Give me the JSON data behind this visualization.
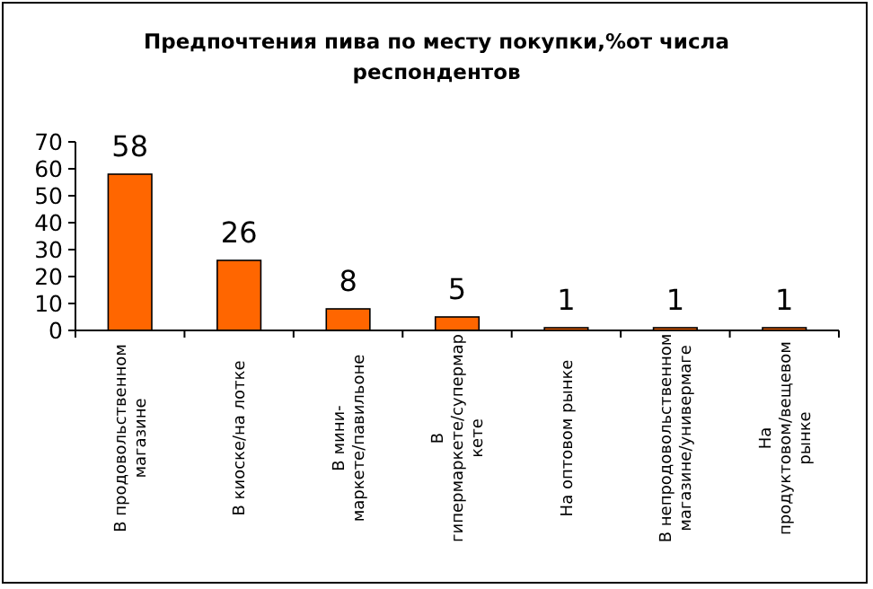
{
  "chart_data": {
    "type": "bar",
    "title": "Предпочтения пива по месту покупки,%от числа респондентов",
    "categories": [
      "В продовольственном магазине",
      "В киоске/на лотке",
      "В мини-маркете/павильоне",
      "В гипермаркете/супермаркете",
      "На оптовом рынке",
      "В непродовольственном магазине/универмаге",
      "На продуктовом/вещевом рынке"
    ],
    "values": [
      58,
      26,
      8,
      5,
      1,
      1,
      1
    ],
    "color": "#ff6600",
    "ylim": [
      0,
      70
    ],
    "yticks": [
      0,
      10,
      20,
      30,
      40,
      50,
      60,
      70
    ],
    "data_labels": true
  }
}
